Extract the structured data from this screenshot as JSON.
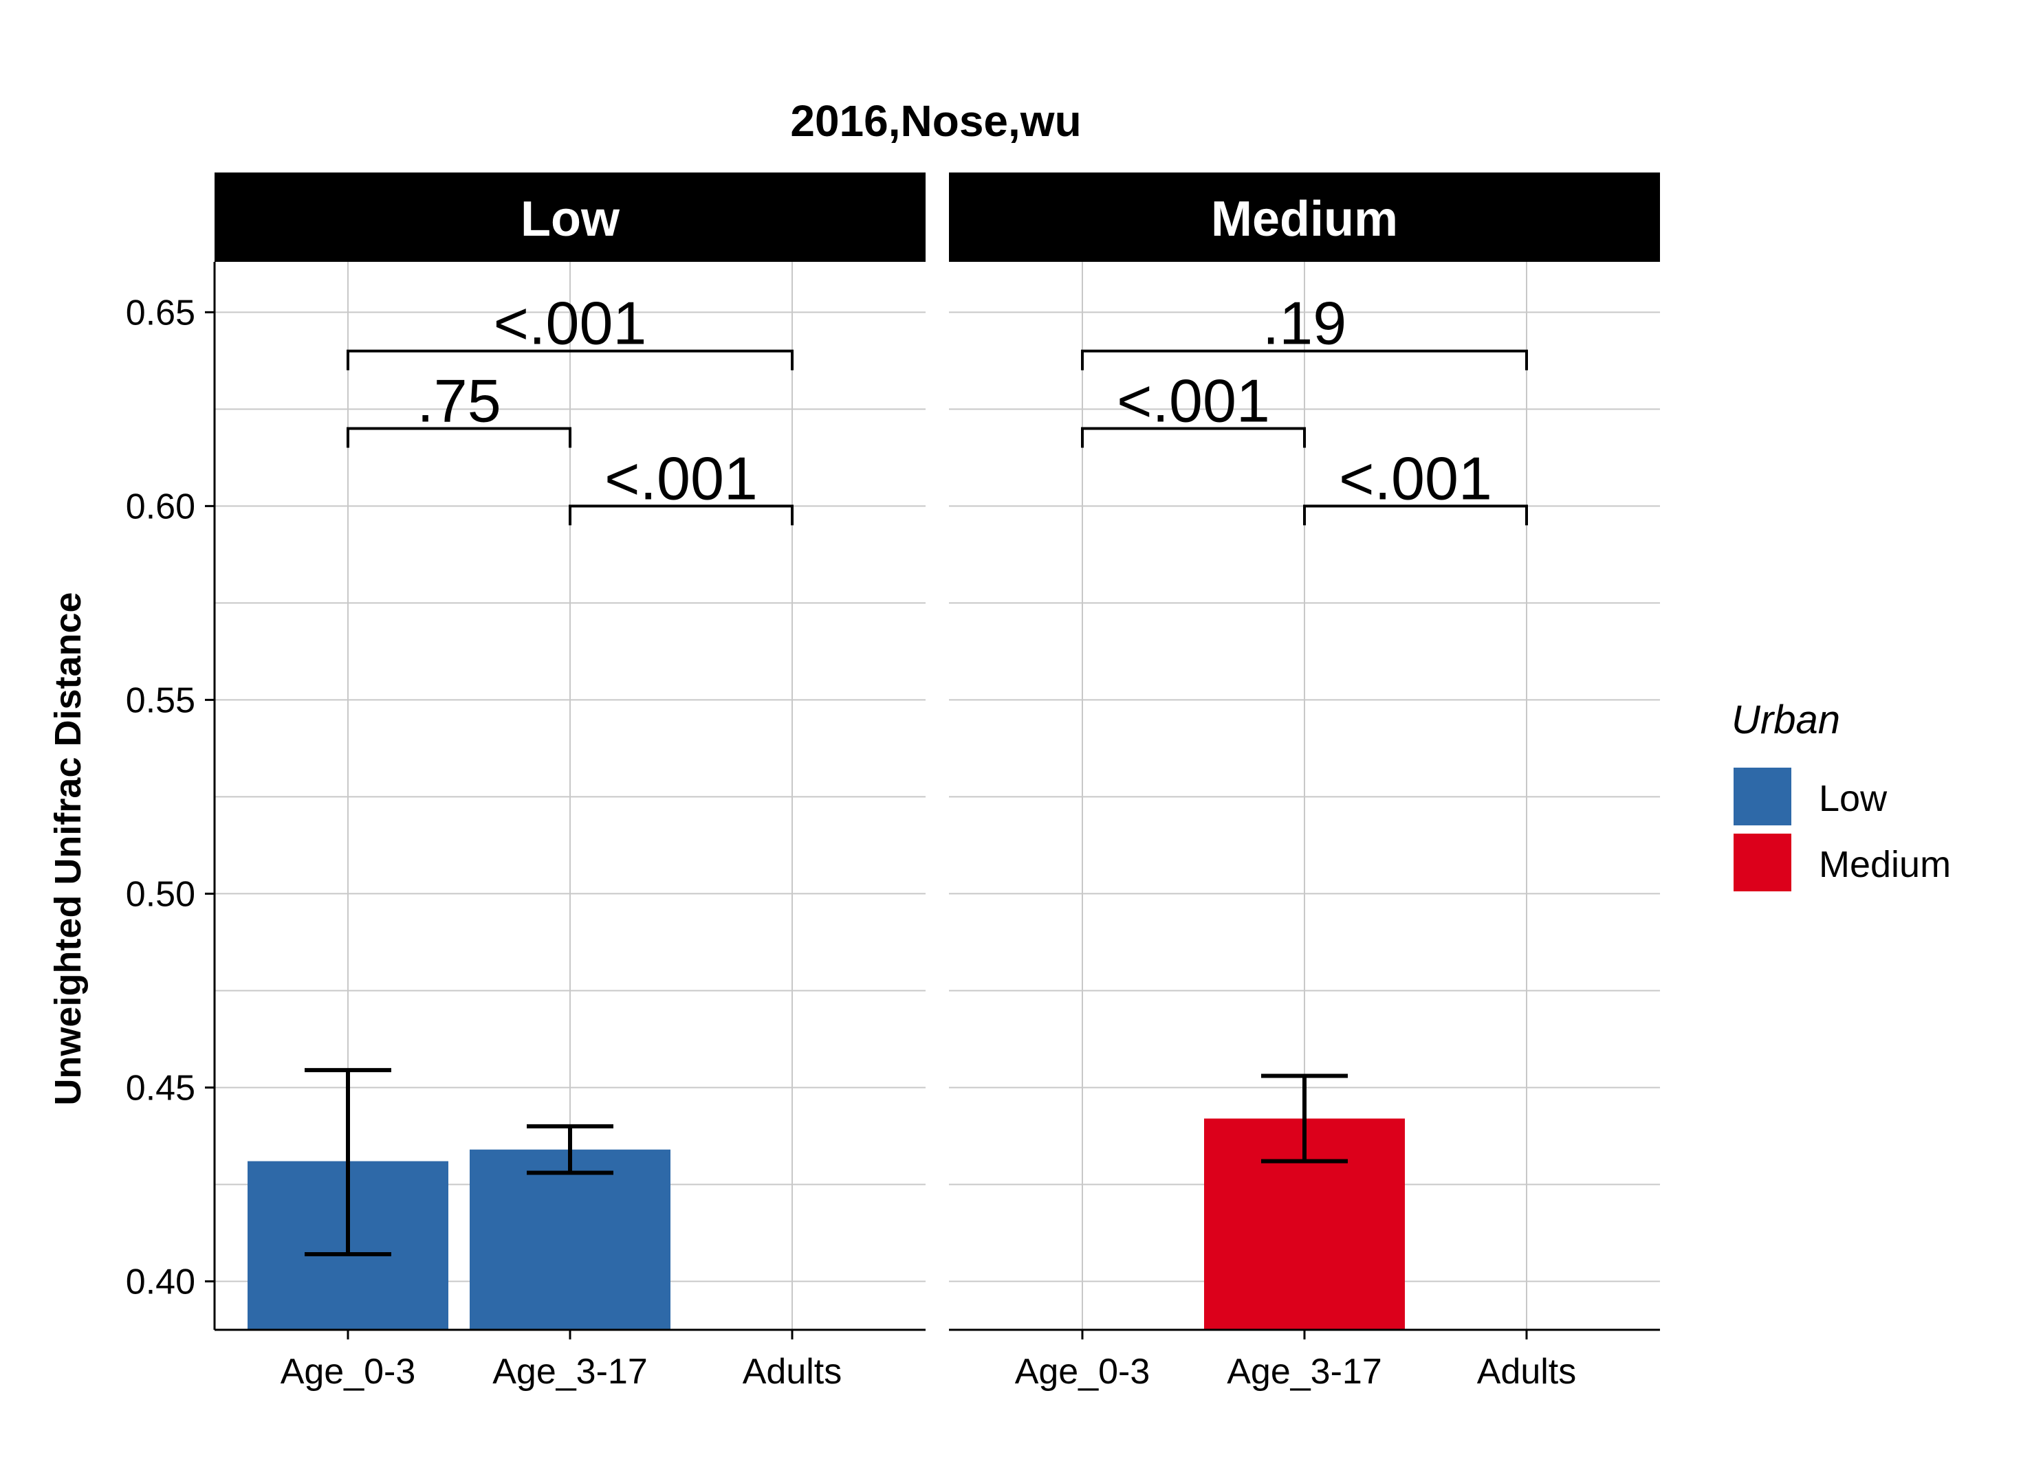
{
  "chart_data": {
    "type": "bar",
    "title": "2016,Nose,wu",
    "xlabel": "",
    "ylabel": "Unweighted Unifrac Distance",
    "ylim": [
      0.3875,
      0.663
    ],
    "yticks": [
      0.4,
      0.45,
      0.5,
      0.55,
      0.6,
      0.65
    ],
    "ytick_labels": [
      "0.40",
      "0.45",
      "0.50",
      "0.55",
      "0.60",
      "0.65"
    ],
    "categories": [
      "Age_0-3",
      "Age_3-17",
      "Adults"
    ],
    "grid": true,
    "legend": {
      "title": "Urban",
      "position": "right",
      "entries": [
        {
          "label": "Low",
          "color": "#2e69a8"
        },
        {
          "label": "Medium",
          "color": "#dc001b"
        }
      ]
    },
    "panels": [
      {
        "facet": "Low",
        "color": "#2e69a8",
        "bars": [
          {
            "category": "Age_0-3",
            "value": 0.431,
            "err_low": 0.407,
            "err_high": 0.4545
          },
          {
            "category": "Age_3-17",
            "value": 0.434,
            "err_low": 0.428,
            "err_high": 0.44
          }
        ],
        "significance": [
          {
            "from": "Age_0-3",
            "to": "Adults",
            "y": 0.64,
            "label": "<.001"
          },
          {
            "from": "Age_0-3",
            "to": "Age_3-17",
            "y": 0.62,
            "label": ".75"
          },
          {
            "from": "Age_3-17",
            "to": "Adults",
            "y": 0.6,
            "label": "<.001"
          }
        ]
      },
      {
        "facet": "Medium",
        "color": "#dc001b",
        "bars": [
          {
            "category": "Age_3-17",
            "value": 0.442,
            "err_low": 0.431,
            "err_high": 0.453
          }
        ],
        "significance": [
          {
            "from": "Age_0-3",
            "to": "Adults",
            "y": 0.64,
            "label": ".19"
          },
          {
            "from": "Age_0-3",
            "to": "Age_3-17",
            "y": 0.62,
            "label": "<.001"
          },
          {
            "from": "Age_3-17",
            "to": "Adults",
            "y": 0.6,
            "label": "<.001"
          }
        ]
      }
    ]
  }
}
